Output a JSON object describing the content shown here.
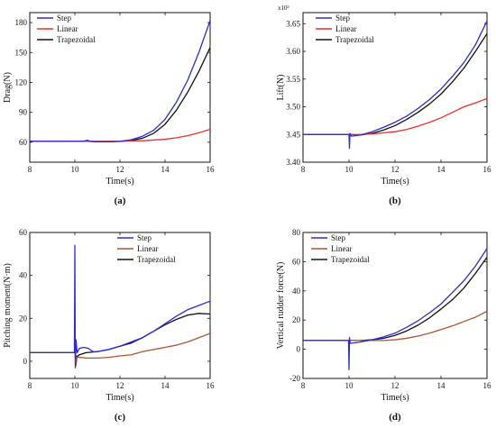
{
  "colors": {
    "Step": "#2b2bd6",
    "Linear": "#e8302b",
    "Trapezoidal": "#111111",
    "LinearC": "#b0532f"
  },
  "chart_data": [
    {
      "id": "a",
      "type": "line",
      "panel_label": "(a)",
      "xlabel": "Time(s)",
      "ylabel": "Drag(N)",
      "y_multiplier": "",
      "xlim": [
        8,
        16
      ],
      "ylim": [
        40,
        190
      ],
      "xticks": [
        8,
        10,
        12,
        14,
        16
      ],
      "yticks": [
        60,
        90,
        120,
        150,
        180
      ],
      "ytick_labels": [
        "60",
        "90",
        "120",
        "150",
        "180"
      ],
      "legend_position": "top-left",
      "series": [
        {
          "name": "Step",
          "color": "#2b2bd6",
          "x": [
            8,
            10,
            10.4,
            10.55,
            10.7,
            11,
            11.5,
            12,
            12.5,
            13,
            13.5,
            14,
            14.5,
            15,
            15.5,
            16
          ],
          "y": [
            61,
            61,
            61,
            62,
            61,
            60.5,
            60.5,
            61,
            62.5,
            66,
            72,
            83,
            100,
            122,
            150,
            182
          ]
        },
        {
          "name": "Linear",
          "color": "#e8302b",
          "x": [
            8,
            10,
            11,
            12,
            13,
            14,
            14.5,
            15,
            15.5,
            16
          ],
          "y": [
            61,
            61,
            61,
            61,
            61.5,
            63,
            64.5,
            66.5,
            69.5,
            73
          ]
        },
        {
          "name": "Trapezoidal",
          "color": "#111111",
          "x": [
            8,
            10,
            10.5,
            11,
            11.5,
            12,
            12.5,
            13,
            13.5,
            14,
            14.5,
            15,
            15.5,
            16
          ],
          "y": [
            61,
            61,
            61,
            60.5,
            60.5,
            60.8,
            61.8,
            64,
            69,
            78,
            92,
            110,
            131,
            155
          ]
        }
      ]
    },
    {
      "id": "b",
      "type": "line",
      "panel_label": "(b)",
      "xlabel": "Time(s)",
      "ylabel": "Lift(N)",
      "y_multiplier": "x10³",
      "xlim": [
        8,
        16
      ],
      "ylim": [
        3.4,
        3.67
      ],
      "xticks": [
        8,
        10,
        12,
        14,
        16
      ],
      "yticks": [
        3.4,
        3.45,
        3.5,
        3.55,
        3.6,
        3.65
      ],
      "ytick_labels": [
        "3.40",
        "3.45",
        "3.50",
        "3.55",
        "3.60",
        "3.65"
      ],
      "legend_position": "top-left",
      "series": [
        {
          "name": "Step",
          "color": "#2b2bd6",
          "x": [
            8,
            10,
            10.02,
            10.04,
            10.1,
            10.5,
            11,
            11.5,
            12,
            12.5,
            13,
            13.5,
            14,
            14.5,
            15,
            15.5,
            16
          ],
          "y": [
            3.45,
            3.45,
            3.425,
            3.452,
            3.447,
            3.449,
            3.455,
            3.463,
            3.472,
            3.483,
            3.497,
            3.513,
            3.532,
            3.555,
            3.58,
            3.612,
            3.655
          ]
        },
        {
          "name": "Linear",
          "color": "#e8302b",
          "x": [
            8,
            10,
            10.5,
            11,
            12,
            12.5,
            13,
            13.5,
            14,
            14.5,
            15,
            15.5,
            16
          ],
          "y": [
            3.45,
            3.45,
            3.45,
            3.451,
            3.455,
            3.459,
            3.465,
            3.472,
            3.48,
            3.49,
            3.5,
            3.507,
            3.515
          ]
        },
        {
          "name": "Trapezoidal",
          "color": "#111111",
          "x": [
            8,
            10,
            10.5,
            11,
            11.5,
            12,
            12.5,
            13,
            13.5,
            14,
            14.5,
            15,
            15.5,
            16
          ],
          "y": [
            3.45,
            3.45,
            3.449,
            3.452,
            3.458,
            3.466,
            3.477,
            3.49,
            3.505,
            3.523,
            3.545,
            3.57,
            3.6,
            3.632
          ]
        }
      ]
    },
    {
      "id": "c",
      "type": "line",
      "panel_label": "(c)",
      "xlabel": "Time(s)",
      "ylabel": "Pitching moment(N·m)",
      "y_multiplier": "",
      "xlim": [
        8,
        16
      ],
      "ylim": [
        -8,
        60
      ],
      "xticks": [
        8,
        10,
        12,
        14,
        16
      ],
      "yticks": [
        0,
        20,
        40,
        60
      ],
      "ytick_labels": [
        "0",
        "20",
        "40",
        "60"
      ],
      "legend_position": "top-right",
      "series": [
        {
          "name": "Step",
          "color": "#2b2bd6",
          "x": [
            8,
            9.98,
            10.0,
            10.02,
            10.05,
            10.1,
            10.2,
            10.4,
            10.6,
            10.8,
            11,
            11.5,
            12,
            12.5,
            13,
            13.5,
            14,
            14.5,
            15,
            15.5,
            16
          ],
          "y": [
            4,
            4,
            54,
            -3,
            10,
            4,
            6,
            6.5,
            6,
            4.5,
            4.5,
            5.5,
            7,
            9,
            11,
            14,
            17.5,
            21,
            24,
            26,
            28
          ]
        },
        {
          "name": "Linear",
          "color": "#b0532f",
          "x": [
            8,
            10,
            10.05,
            10.1,
            10.5,
            11,
            11.5,
            12,
            12.5,
            13,
            13.5,
            14,
            14.5,
            15,
            15.5,
            16
          ],
          "y": [
            4,
            4,
            -2,
            2,
            1.5,
            1.5,
            1.8,
            2.5,
            3,
            4.5,
            5.5,
            6.5,
            7.5,
            9,
            11,
            13
          ]
        },
        {
          "name": "Trapezoidal",
          "color": "#111111",
          "x": [
            8,
            10,
            10.05,
            10.2,
            10.5,
            11,
            11.5,
            12,
            12.5,
            13,
            13.5,
            14,
            14.5,
            15,
            15.5,
            16
          ],
          "y": [
            4,
            4,
            2,
            3,
            4,
            4.5,
            5.5,
            7,
            8.5,
            11,
            14,
            17,
            19.5,
            21.5,
            22.3,
            22
          ]
        }
      ]
    },
    {
      "id": "d",
      "type": "line",
      "panel_label": "(d)",
      "xlabel": "Time(s)",
      "ylabel": "Vertical rudder force(N)",
      "y_multiplier": "",
      "xlim": [
        8,
        16
      ],
      "ylim": [
        -20,
        80
      ],
      "xticks": [
        8,
        10,
        12,
        14,
        16
      ],
      "yticks": [
        -20,
        0,
        20,
        40,
        60,
        80
      ],
      "ytick_labels": [
        "-20",
        "0",
        "20",
        "40",
        "60",
        "80"
      ],
      "legend_position": "top-left",
      "series": [
        {
          "name": "Step",
          "color": "#2b2bd6",
          "x": [
            8,
            9.98,
            10.0,
            10.02,
            10.05,
            10.5,
            11,
            11.5,
            12,
            12.5,
            13,
            13.5,
            14,
            14.5,
            15,
            15.5,
            16
          ],
          "y": [
            6,
            6,
            -14,
            8,
            4,
            5,
            6.5,
            8.5,
            11,
            15,
            19.5,
            25,
            31,
            39,
            47,
            57,
            69
          ]
        },
        {
          "name": "Linear",
          "color": "#b0532f",
          "x": [
            8,
            10,
            10.5,
            11,
            11.5,
            12,
            12.5,
            13,
            13.5,
            14,
            14.5,
            15,
            15.5,
            16
          ],
          "y": [
            6,
            6,
            6,
            6,
            6,
            6.5,
            7.5,
            9,
            11,
            13.5,
            16,
            19,
            22,
            26
          ]
        },
        {
          "name": "Trapezoidal",
          "color": "#111111",
          "x": [
            8,
            10,
            10.5,
            11,
            11.5,
            12,
            12.5,
            13,
            13.5,
            14,
            14.5,
            15,
            15.5,
            16
          ],
          "y": [
            6,
            6,
            6,
            6.5,
            7.5,
            9.5,
            12.5,
            16.5,
            21.5,
            27.5,
            34,
            42,
            52,
            63
          ]
        }
      ]
    }
  ]
}
